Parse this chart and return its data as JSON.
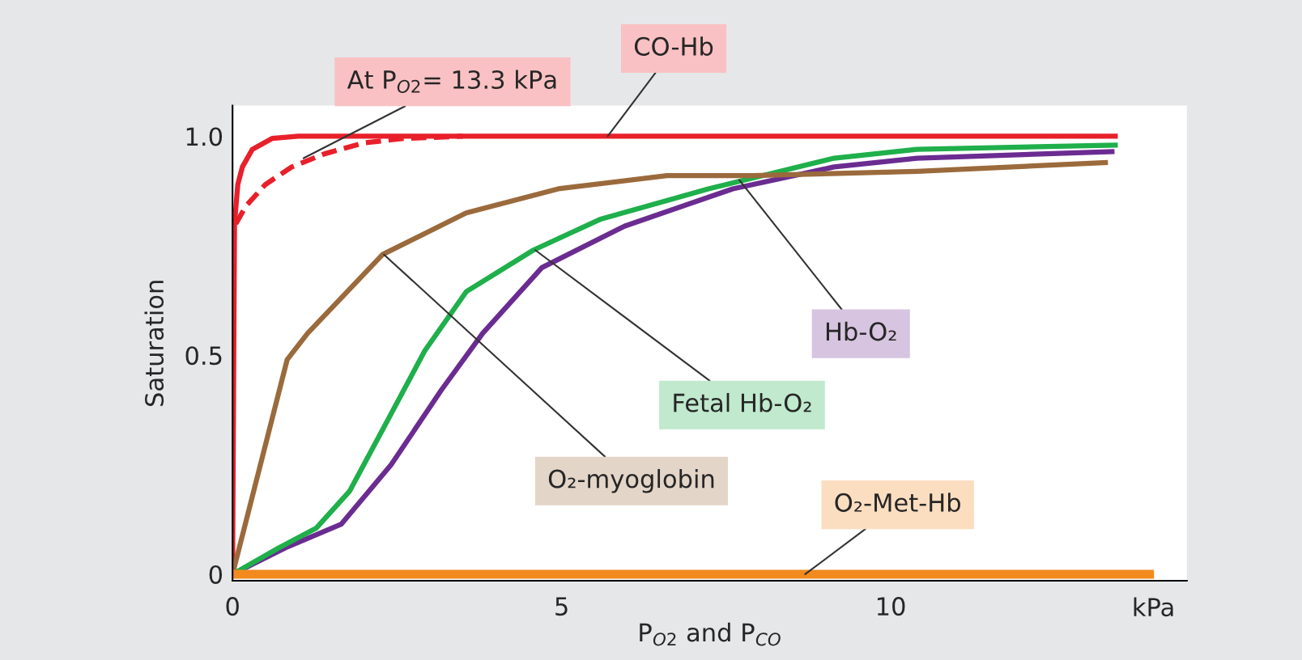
{
  "chart_data": {
    "type": "line",
    "xlabel": "P$_{O2}$ and P$_{CO}$",
    "ylabel": "Saturation",
    "xlim": [
      0,
      14.5
    ],
    "ylim": [
      -0.015,
      1.07
    ],
    "xticks": [
      0,
      5,
      10
    ],
    "yticks": [
      0,
      0.5,
      {
        "value": 1.0,
        "label": "1.0"
      }
    ],
    "grid": false,
    "legend": false,
    "marker": "none",
    "series": [
      {
        "color": "#e8202a",
        "line_style": "solid",
        "x": [
          0,
          0.03,
          0.08,
          0.15,
          0.3,
          0.6,
          1.0,
          3,
          6,
          10,
          13.45
        ],
        "values": [
          0,
          0.8,
          0.89,
          0.93,
          0.97,
          0.995,
          1.0,
          1.0,
          1.0,
          1.0,
          1.0
        ]
      },
      {
        "color": "#e8202a",
        "line_style": "dashed",
        "x": [
          0.05,
          0.2,
          0.5,
          0.9,
          1.4,
          2.0,
          2.6,
          3.5
        ],
        "values": [
          0.8,
          0.84,
          0.89,
          0.93,
          0.96,
          0.985,
          0.995,
          1.0
        ]
      },
      {
        "color": "#6b2c91",
        "line_style": "solid",
        "x": [
          0,
          0.8,
          1.65,
          2.41,
          3.17,
          3.8,
          4.7,
          5.96,
          7.6,
          9.14,
          10.4,
          13.4
        ],
        "values": [
          0,
          0.06,
          0.114,
          0.25,
          0.42,
          0.55,
          0.7,
          0.795,
          0.88,
          0.93,
          0.95,
          0.965
        ]
      },
      {
        "color": "#1faf4b",
        "line_style": "solid",
        "x": [
          0,
          0.7,
          1.27,
          1.78,
          2.28,
          2.92,
          3.55,
          4.57,
          5.58,
          7.23,
          9.14,
          10.4,
          13.45
        ],
        "values": [
          0,
          0.06,
          0.105,
          0.19,
          0.33,
          0.51,
          0.645,
          0.74,
          0.81,
          0.88,
          0.95,
          0.97,
          0.98
        ]
      },
      {
        "color": "#9b6a3c",
        "line_style": "solid",
        "x": [
          0,
          0.83,
          1.14,
          2.28,
          3.55,
          4.95,
          6.6,
          7.9,
          10.4,
          13.3
        ],
        "values": [
          0,
          0.49,
          0.55,
          0.73,
          0.825,
          0.88,
          0.91,
          0.91,
          0.92,
          0.94
        ]
      },
      {
        "color": "#f28a1e",
        "line_style": "solid",
        "x": [
          0,
          14.0
        ],
        "values": [
          0,
          0
        ]
      }
    ],
    "annotations": [
      {
        "text": "CO-Hb",
        "x": 5.7,
        "y": 1.0
      },
      {
        "text": "At P$_{O2}$= 13.3 kPa",
        "x": 1.08,
        "y": 0.95
      },
      {
        "text": "Hb-O₂",
        "x": 7.7,
        "y": 0.9
      },
      {
        "text": "Fetal Hb-O₂",
        "x": 4.6,
        "y": 0.74
      },
      {
        "text": "O₂-myoglobin",
        "x": 2.3,
        "y": 0.73
      },
      {
        "text": "O₂-Met-Hb",
        "x": 8.7,
        "y": 0
      },
      "kPa"
    ]
  }
}
